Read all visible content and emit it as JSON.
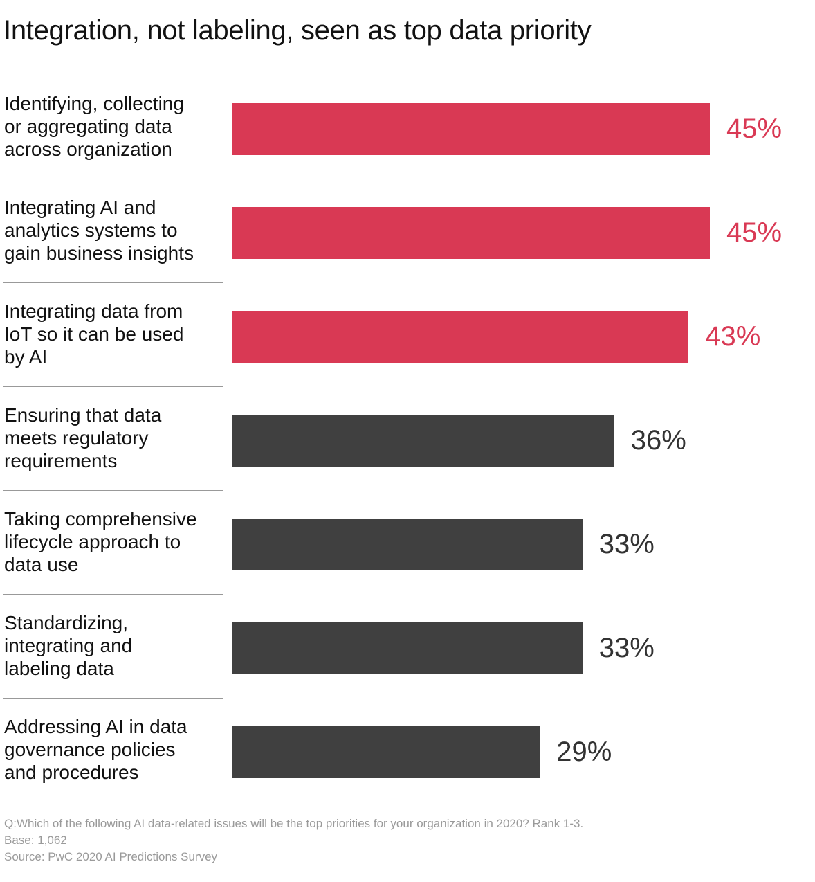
{
  "chart_data": {
    "type": "bar",
    "orientation": "horizontal",
    "title": "Integration, not labeling, seen as top data priority",
    "categories": [
      "Identifying, collecting\nor aggregating data\nacross organization",
      "Integrating AI and\nanalytics systems to\ngain business insights",
      "Integrating data from\nIoT so it can be used\nby AI",
      "Ensuring that data\nmeets regulatory\nrequirements",
      "Taking comprehensive\nlifecycle approach to\ndata use",
      "Standardizing,\nintegrating and\nlabeling data",
      "Addressing AI in data\ngovernance policies\nand procedures"
    ],
    "values": [
      45,
      45,
      43,
      36,
      33,
      33,
      29
    ],
    "value_labels": [
      "45%",
      "45%",
      "43%",
      "36%",
      "33%",
      "33%",
      "29%"
    ],
    "highlighted": [
      true,
      true,
      true,
      false,
      false,
      false,
      false
    ],
    "xlim": [
      0,
      45
    ],
    "grid": false,
    "colors": {
      "highlight": "#d93954",
      "default": "#404040",
      "highlight_text": "#d93954",
      "default_text": "#333333"
    }
  },
  "footer": {
    "question": "Q:Which of the following AI data-related issues will be the top priorities for your organization in 2020? Rank 1-3.",
    "base": "Base: 1,062",
    "source": "Source: PwC 2020 AI Predictions Survey"
  }
}
